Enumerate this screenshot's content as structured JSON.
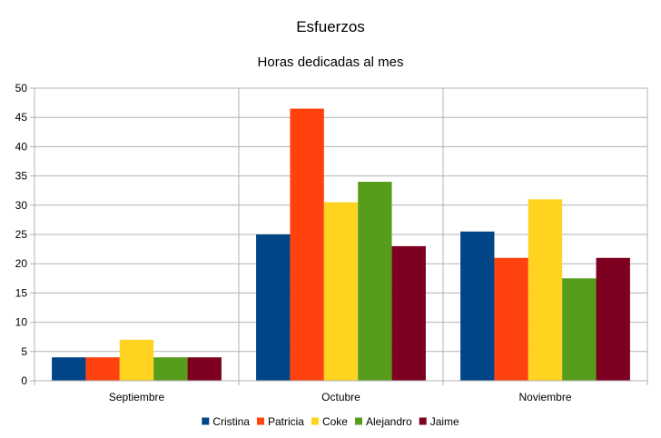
{
  "chart_data": {
    "type": "bar",
    "title": "Esfuerzos",
    "subtitle": "Horas dedicadas al mes",
    "xlabel": "",
    "ylabel": "",
    "ylim": [
      0,
      50
    ],
    "yticks": [
      0,
      5,
      10,
      15,
      20,
      25,
      30,
      35,
      40,
      45,
      50
    ],
    "grid": true,
    "legend_position": "bottom",
    "categories": [
      "Septiembre",
      "Octubre",
      "Noviembre"
    ],
    "series": [
      {
        "name": "Cristina",
        "color": "#004586",
        "values": [
          4,
          25,
          25.5
        ]
      },
      {
        "name": "Patricia",
        "color": "#ff420e",
        "values": [
          4,
          46.5,
          21
        ]
      },
      {
        "name": "Coke",
        "color": "#ffd320",
        "values": [
          7,
          30.5,
          31
        ]
      },
      {
        "name": "Alejandro",
        "color": "#579d1c",
        "values": [
          4,
          34,
          17.5
        ]
      },
      {
        "name": "Jaime",
        "color": "#7e0021",
        "values": [
          4,
          23,
          21
        ]
      }
    ]
  }
}
